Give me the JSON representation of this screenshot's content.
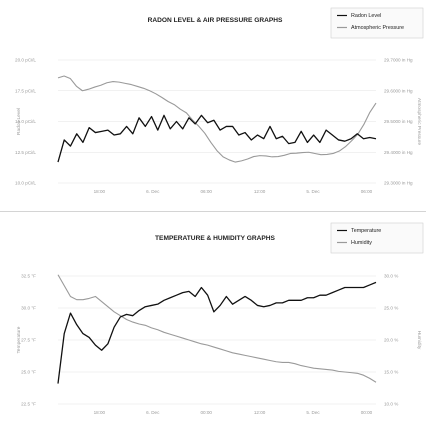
{
  "chart_data": [
    {
      "type": "line",
      "title": "RADON LEVEL & AIR PRESSURE GRAPHS",
      "legend_position": "top-right",
      "grid": true,
      "x_tick_labels": [
        "18:00",
        "6. Dec",
        "06:00",
        "12:00",
        "5. Dec",
        "06:00"
      ],
      "left_axis": {
        "label": "Radon Level",
        "tick_labels": [
          "20.0 pCi/L",
          "17.5 pCi/L",
          "15.0 pCi/L",
          "12.5 pCi/L",
          "10.0 pCi/L"
        ],
        "ylim": [
          10.0,
          20.0
        ]
      },
      "right_axis": {
        "label": "Atmospheric Pressure",
        "tick_labels": [
          "29.7000 in Hg",
          "29.6000 in Hg",
          "29.5000 in Hg",
          "29.4000 in Hg",
          "29.3000 in Hg"
        ],
        "ylim": [
          29.3,
          29.7
        ]
      },
      "series": [
        {
          "name": "Radon Level",
          "axis": "left",
          "color": "#111111",
          "values": [
            11.7,
            13.5,
            13.0,
            14.0,
            13.3,
            14.5,
            14.1,
            14.2,
            14.3,
            13.9,
            14.0,
            14.6,
            14.0,
            15.3,
            14.6,
            15.4,
            14.3,
            15.5,
            14.4,
            15.0,
            14.4,
            15.3,
            14.8,
            15.5,
            14.9,
            15.1,
            14.3,
            14.6,
            14.6,
            13.9,
            14.1,
            13.5,
            13.9,
            13.6,
            14.6,
            13.6,
            13.8,
            13.2,
            13.3,
            14.2,
            13.3,
            13.9,
            13.3,
            14.3,
            13.9,
            13.5,
            13.4,
            13.6,
            14.0,
            13.6,
            13.7,
            13.6
          ]
        },
        {
          "name": "Atmospheric Pressure",
          "axis": "right",
          "color": "#9a9a9a",
          "values": [
            29.642,
            29.648,
            29.64,
            29.615,
            29.6,
            29.605,
            29.612,
            29.618,
            29.626,
            29.63,
            29.628,
            29.624,
            29.62,
            29.614,
            29.608,
            29.6,
            29.59,
            29.578,
            29.565,
            29.555,
            29.54,
            29.528,
            29.505,
            29.485,
            29.462,
            29.432,
            29.405,
            29.385,
            29.375,
            29.368,
            29.372,
            29.378,
            29.386,
            29.389,
            29.388,
            29.385,
            29.386,
            29.39,
            29.396,
            29.397,
            29.399,
            29.4,
            29.396,
            29.392,
            29.393,
            29.396,
            29.404,
            29.418,
            29.437,
            29.458,
            29.49,
            29.53,
            29.56
          ]
        }
      ]
    },
    {
      "type": "line",
      "title": "TEMPERATURE & HUMIDITY GRAPHS",
      "legend_position": "top-right",
      "grid": true,
      "x_tick_labels": [
        "18:00",
        "6. Dec",
        "00:00",
        "12:00",
        "5. Dec",
        "00:00"
      ],
      "left_axis": {
        "label": "Temperature",
        "tick_labels": [
          "32.5 °F",
          "30.0 °F",
          "27.5 °F",
          "25.0 °F",
          "22.5 °F"
        ],
        "ylim": [
          22.5,
          32.5
        ]
      },
      "right_axis": {
        "label": "Humidity",
        "tick_labels": [
          "30.0 %",
          "25.0 %",
          "20.0 %",
          "15.0 %",
          "10.0 %"
        ],
        "ylim": [
          10.0,
          30.0
        ]
      },
      "series": [
        {
          "name": "Temperature",
          "axis": "left",
          "color": "#111111",
          "values": [
            24.1,
            28.0,
            29.6,
            28.7,
            28.0,
            27.7,
            27.1,
            26.7,
            27.2,
            28.5,
            29.3,
            29.5,
            29.4,
            29.8,
            30.1,
            30.2,
            30.3,
            30.6,
            30.8,
            31.0,
            31.2,
            31.3,
            30.9,
            31.6,
            31.0,
            29.7,
            30.2,
            30.9,
            30.3,
            30.6,
            30.9,
            30.6,
            30.2,
            30.1,
            30.2,
            30.4,
            30.4,
            30.6,
            30.6,
            30.6,
            30.8,
            30.8,
            31.0,
            31.0,
            31.2,
            31.4,
            31.6,
            31.6,
            31.6,
            31.6,
            31.8,
            32.0
          ]
        },
        {
          "name": "Humidity",
          "axis": "right",
          "color": "#9a9a9a",
          "values": [
            30.2,
            28.5,
            26.8,
            26.3,
            26.3,
            26.5,
            26.8,
            26.0,
            25.2,
            24.4,
            23.8,
            23.2,
            22.8,
            22.5,
            22.3,
            21.9,
            21.6,
            21.2,
            20.9,
            20.6,
            20.3,
            20.0,
            19.7,
            19.4,
            19.2,
            18.9,
            18.6,
            18.3,
            18.0,
            17.8,
            17.6,
            17.4,
            17.2,
            17.0,
            16.8,
            16.6,
            16.5,
            16.5,
            16.3,
            16.0,
            15.8,
            15.6,
            15.5,
            15.4,
            15.3,
            15.1,
            15.0,
            14.9,
            14.8,
            14.5,
            14.0,
            13.4
          ]
        }
      ]
    }
  ]
}
